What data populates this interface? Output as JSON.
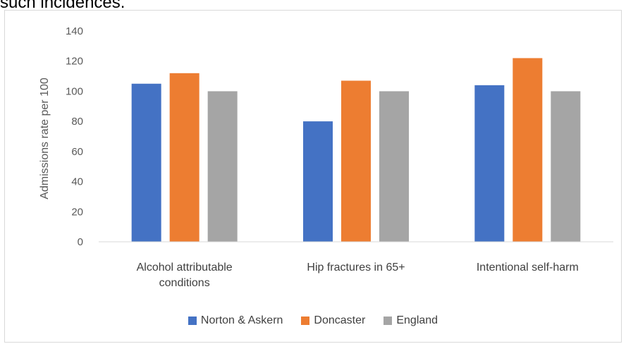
{
  "heading_fragment": "such incidences.",
  "chart_data": {
    "type": "bar",
    "categories": [
      [
        "Alcohol attributable",
        "conditions"
      ],
      [
        "Hip fractures in 65+"
      ],
      [
        "Intentional self-harm"
      ]
    ],
    "series": [
      {
        "name": "Norton & Askern",
        "color": "#4472c4",
        "values": [
          105,
          80,
          104
        ]
      },
      {
        "name": "Doncaster",
        "color": "#ed7d31",
        "values": [
          112,
          107,
          122
        ]
      },
      {
        "name": "England",
        "color": "#a5a5a5",
        "values": [
          100,
          100,
          100
        ]
      }
    ],
    "ylabel": "Admissions rate per 100",
    "ylim": [
      0,
      140
    ],
    "yticks": [
      0,
      20,
      40,
      60,
      80,
      100,
      120,
      140
    ],
    "grid": false,
    "legend_position": "bottom"
  }
}
